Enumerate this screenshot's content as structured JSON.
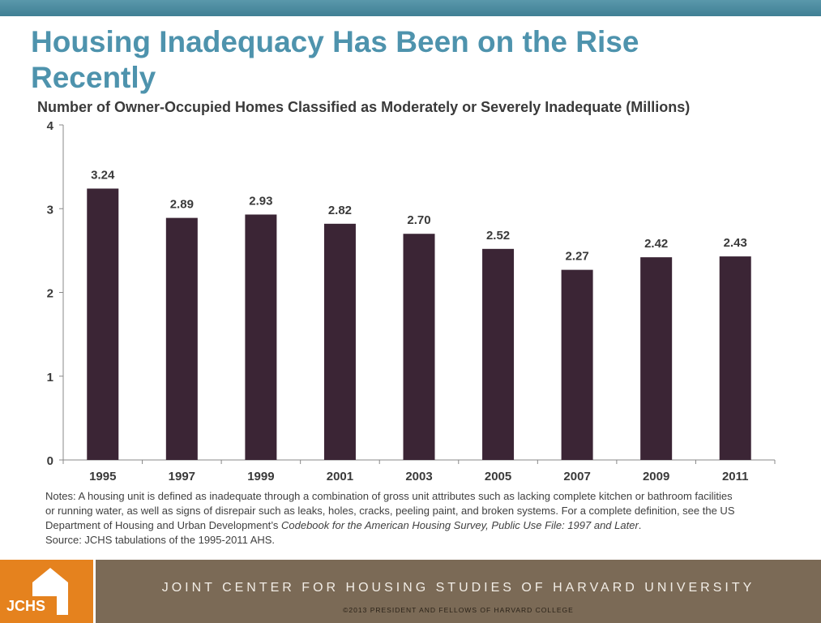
{
  "title": "Housing Inadequacy Has Been on the Rise Recently",
  "colors": {
    "bar": "#3b2535",
    "title": "#4e93ad",
    "footer_band": "#7b6a56",
    "logo_bg": "#e5821e"
  },
  "chart_data": {
    "type": "bar",
    "title": "Number of Owner-Occupied Homes Classified as Moderately or Severely Inadequate (Millions)",
    "categories": [
      "1995",
      "1997",
      "1999",
      "2001",
      "2003",
      "2005",
      "2007",
      "2009",
      "2011"
    ],
    "values": [
      3.24,
      2.89,
      2.93,
      2.82,
      2.7,
      2.52,
      2.27,
      2.42,
      2.43
    ],
    "data_labels": [
      "3.24",
      "2.89",
      "2.93",
      "2.82",
      "2.70",
      "2.52",
      "2.27",
      "2.42",
      "2.43"
    ],
    "ylim": [
      0,
      4
    ],
    "yticks": [
      "0",
      "1",
      "2",
      "3",
      "4"
    ],
    "grid": false,
    "xlabel": "",
    "ylabel": ""
  },
  "notes": {
    "text": "Notes: A housing unit is defined as inadequate through a combination of gross unit attributes such as lacking complete kitchen or bathroom facilities or running water, as well as signs of disrepair such as leaks, holes, cracks, peeling paint, and broken systems. For a complete definition, see the US Department of Housing and Urban Development’s ",
    "italic": "Codebook for the American Housing Survey, Public Use File: 1997 and Later",
    "end": ".",
    "source": "Source: JCHS tabulations of the 1995-2011 AHS."
  },
  "footer": {
    "logo_text": "JCHS",
    "org": "JOINT CENTER FOR HOUSING STUDIES OF HARVARD UNIVERSITY",
    "copyright": "©2013 PRESIDENT AND FELLOWS OF HARVARD COLLEGE"
  }
}
